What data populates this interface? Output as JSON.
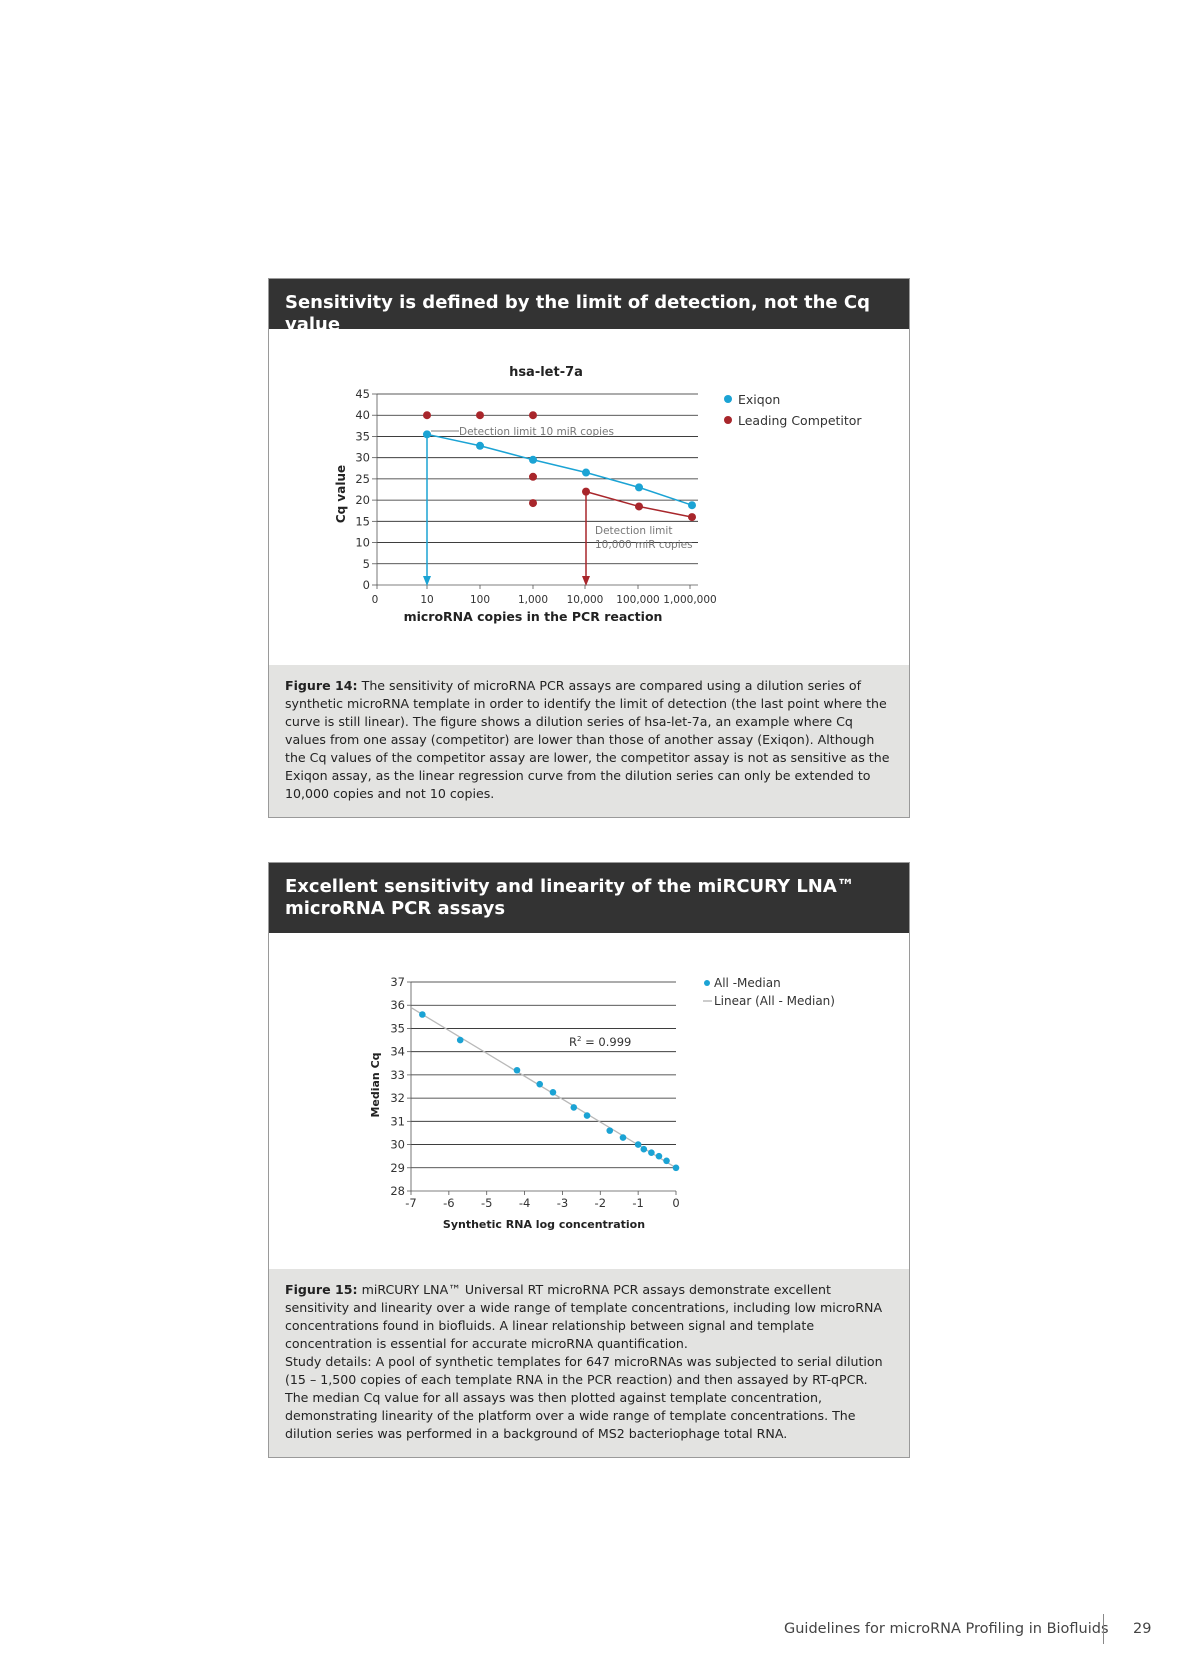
{
  "section1": {
    "heading": "Sensitivity is defined by the limit of detection, not the Cq value",
    "caption_label": "Figure 14:",
    "caption_text": "The sensitivity of microRNA PCR assays are compared using a dilution series of synthetic microRNA template in order to identify the limit of detection (the last point where the curve is still linear). The figure shows a dilution series of hsa-let-7a, an example where Cq values from one assay (competitor) are lower than those of another assay (Exiqon). Although the Cq values of the competitor assay are lower, the competitor assay is not as sensitive as the Exiqon assay, as the linear regression curve from the dilution series can only be extended to 10,000 copies and not 10 copies."
  },
  "section2": {
    "heading": "Excellent sensitivity and linearity of the miRCURY LNA™ microRNA PCR assays",
    "caption_label": "Figure 15:",
    "caption_text": "miRCURY LNA™ Universal RT microRNA PCR assays demonstrate excellent sensitivity and linearity over a wide range of template concentrations, including low microRNA concentrations found in biofluids. A linear relationship between signal and template concentration is essential for accurate microRNA quantification.",
    "study_details_1": "Study details: A pool of synthetic templates for 647 microRNAs was subjected to serial dilution (15 – 1,500 copies of each template RNA in the PCR reaction) and then assayed by RT-qPCR.",
    "study_details_2": "The median Cq value for all assays was then plotted against template concentration, demonstrating linearity of the platform over a wide range of template concentrations. The dilution series was performed in a background of MS2 bacteriophage total RNA."
  },
  "footer": {
    "title": "Guidelines for microRNA Profiling in Biofluids",
    "page_number": "29"
  },
  "colors": {
    "exiqon": "#1ba3d4",
    "competitor": "#a8262b",
    "header_bg": "#333333",
    "caption_bg": "#e3e3e1"
  },
  "chart_data": [
    {
      "type": "scatter",
      "title": "hsa-let-7a",
      "xlabel": "microRNA copies in the PCR reaction",
      "ylabel": "Cq value",
      "x_scale": "log",
      "x_ticks": [
        "0",
        "10",
        "100",
        "1,000",
        "10,000",
        "100,000",
        "1,000,000"
      ],
      "y_ticks": [
        "0",
        "5",
        "10",
        "15",
        "20",
        "25",
        "30",
        "35",
        "40",
        "45"
      ],
      "ylim": [
        0,
        45
      ],
      "grid": true,
      "legend_position": "right",
      "series": [
        {
          "name": "Exiqon",
          "x": [
            10,
            100,
            1000,
            10000,
            100000,
            1000000
          ],
          "y": [
            35.5,
            32.8,
            29.5,
            26.5,
            23,
            18.8
          ]
        },
        {
          "name": "Leading Competitor",
          "x": [
            10,
            100,
            1000,
            1000,
            1000,
            10000,
            100000,
            1000000
          ],
          "y": [
            40,
            40,
            40,
            25.5,
            19.3,
            22,
            18.5,
            16
          ]
        }
      ],
      "annotations": [
        "Detection limit 10 miR copies",
        "Detection limit",
        "10,000 miR copies"
      ]
    },
    {
      "type": "scatter",
      "xlabel": "Synthetic RNA log concentration",
      "ylabel": "Median Cq",
      "x_ticks": [
        "-7",
        "-6",
        "-5",
        "-4",
        "-3",
        "-2",
        "-1",
        "0"
      ],
      "y_ticks": [
        "28",
        "29",
        "30",
        "31",
        "32",
        "33",
        "34",
        "35",
        "36",
        "37"
      ],
      "xlim": [
        -7,
        0
      ],
      "ylim": [
        28,
        37
      ],
      "grid": true,
      "legend_position": "right",
      "series": [
        {
          "name": "All -Median",
          "x": [
            -6.7,
            -5.7,
            -4.2,
            -3.6,
            -3.25,
            -2.7,
            -2.35,
            -1.75,
            -1.4,
            -1.0,
            -0.85,
            -0.65,
            -0.45,
            -0.25,
            0
          ],
          "y": [
            35.6,
            34.5,
            33.2,
            32.6,
            32.25,
            31.6,
            31.25,
            30.6,
            30.3,
            30.0,
            29.8,
            29.65,
            29.5,
            29.3,
            29.0
          ]
        },
        {
          "name": "Linear (All - Median)",
          "x": [
            -7,
            0
          ],
          "y": [
            35.9,
            29.0
          ]
        }
      ],
      "annotations": [
        "R² = 0.999"
      ],
      "r_squared_label": "R",
      "r_squared_sup": "2",
      "r_squared_value": "= 0.999"
    }
  ]
}
